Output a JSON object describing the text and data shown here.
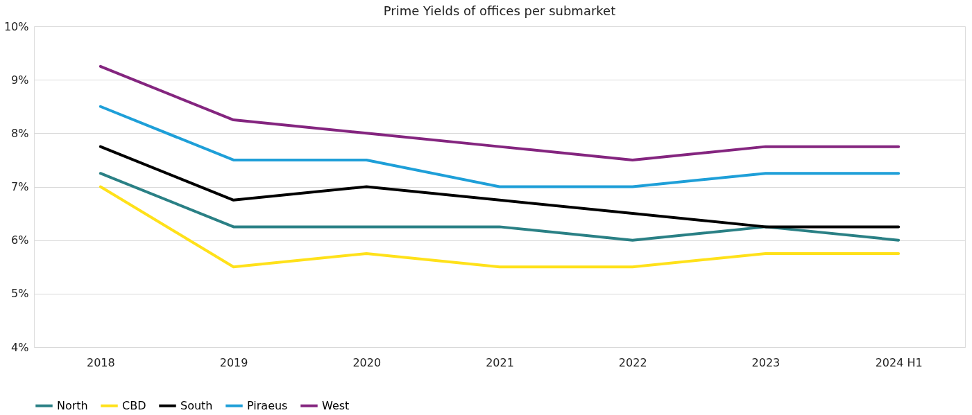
{
  "chart_data": {
    "type": "line",
    "title": "Prime Yields of offices per submarket",
    "categories": [
      "2018",
      "2019",
      "2020",
      "2021",
      "2022",
      "2023",
      "2024 H1"
    ],
    "series": [
      {
        "name": "North",
        "color": "#2a8085",
        "values": [
          7.25,
          6.25,
          6.25,
          6.25,
          6.0,
          6.25,
          6.0
        ]
      },
      {
        "name": "CBD",
        "color": "#ffe11a",
        "values": [
          7.0,
          5.5,
          5.75,
          5.5,
          5.5,
          5.75,
          5.75
        ]
      },
      {
        "name": "South",
        "color": "#000000",
        "values": [
          7.75,
          6.75,
          7.0,
          6.75,
          6.5,
          6.25,
          6.25
        ]
      },
      {
        "name": "Piraeus",
        "color": "#1e9fd8",
        "values": [
          8.5,
          7.5,
          7.5,
          7.0,
          7.0,
          7.25,
          7.25
        ]
      },
      {
        "name": "West",
        "color": "#84257f",
        "values": [
          9.25,
          8.25,
          8.0,
          7.75,
          7.5,
          7.75,
          7.75
        ]
      }
    ],
    "ylim": [
      4,
      10
    ],
    "yticks": [
      {
        "value": 4,
        "label": "4%"
      },
      {
        "value": 5,
        "label": "5%"
      },
      {
        "value": 6,
        "label": "6%"
      },
      {
        "value": 7,
        "label": "7%"
      },
      {
        "value": 8,
        "label": "8%"
      },
      {
        "value": 9,
        "label": "9%"
      },
      {
        "value": 10,
        "label": "10%"
      }
    ],
    "grid": "y",
    "legend": "bottom",
    "marker": "none",
    "line_style": "solid"
  }
}
